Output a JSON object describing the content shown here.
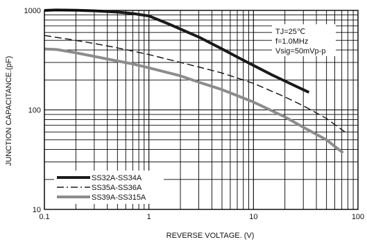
{
  "chart_data": {
    "type": "line",
    "title": "",
    "xlabel": "REVERSE VOLTAGE. (V)",
    "ylabel": "JUNCTION CAPACITANCE.(pF)",
    "x_scale": "log",
    "y_scale": "log",
    "xlim": [
      0.1,
      100
    ],
    "ylim": [
      10,
      1000
    ],
    "x_ticks": [
      "0.1",
      "1",
      "10",
      "100"
    ],
    "y_ticks": [
      "10",
      "100",
      "1000"
    ],
    "grid": true,
    "legend_position": "bottom-left",
    "annotation": [
      "TJ=25℃",
      "f=1.0MHz",
      "Vsig=50mVp-p"
    ],
    "series": [
      {
        "name": "SS32A-SS34A",
        "style": "solid-thick",
        "color": "#1a1a1a",
        "x": [
          0.1,
          0.13,
          0.2,
          0.3,
          0.5,
          0.7,
          1,
          1.5,
          2,
          3,
          5,
          7,
          10,
          15,
          20,
          34
        ],
        "y": [
          1000,
          1010,
          1005,
          990,
          960,
          930,
          880,
          740,
          650,
          540,
          410,
          340,
          280,
          225,
          195,
          150
        ]
      },
      {
        "name": "SS35A-SS36A",
        "style": "dashed",
        "color": "#1a1a1a",
        "x": [
          0.1,
          0.2,
          0.3,
          0.5,
          0.7,
          1,
          2,
          3,
          5,
          10,
          20,
          30,
          50,
          75
        ],
        "y": [
          560,
          500,
          465,
          420,
          390,
          360,
          300,
          270,
          235,
          185,
          135,
          110,
          82,
          60
        ]
      },
      {
        "name": "SS39A-SS315A",
        "style": "solid-gray",
        "color": "#8c8c8c",
        "x": [
          0.1,
          0.13,
          0.2,
          0.3,
          0.5,
          0.7,
          1,
          2,
          3,
          5,
          10,
          20,
          30,
          50,
          72
        ],
        "y": [
          410,
          405,
          375,
          345,
          310,
          290,
          265,
          220,
          190,
          160,
          120,
          85,
          67,
          50,
          37
        ]
      }
    ]
  }
}
